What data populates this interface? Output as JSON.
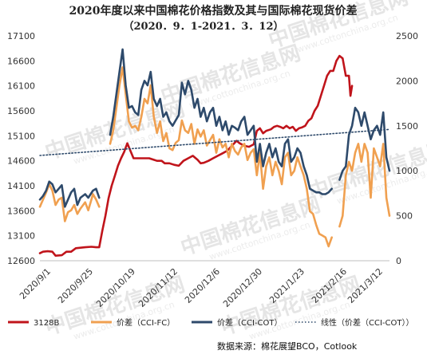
{
  "chart_data": {
    "type": "line",
    "title": "2020年度以来中国棉花价格指数及其与国际棉花现货价差",
    "subtitle": "（2020．9．1-2021．3．12）",
    "y_left": {
      "min": 12600,
      "max": 17100,
      "ticks": [
        12600,
        13100,
        13600,
        14100,
        14600,
        15100,
        15600,
        16100,
        16600,
        17100
      ]
    },
    "y_right": {
      "min": 0,
      "max": 2500,
      "ticks": [
        0,
        500,
        1000,
        1500,
        2000,
        2500
      ]
    },
    "x_tick_labels": [
      "2020/9/1",
      "2020/9/25",
      "2020/10/19",
      "2020/11/12",
      "2020/12/6",
      "2020/12/30",
      "2021/1/23",
      "2021/2/16",
      "2021/3/12"
    ],
    "x_domain": [
      0,
      192
    ],
    "series": [
      {
        "name": "3128B",
        "axis": "left",
        "color": "#c0141b",
        "style": "solid",
        "points": [
          [
            0,
            12750
          ],
          [
            2,
            12780
          ],
          [
            5,
            12790
          ],
          [
            8,
            12780
          ],
          [
            10,
            12700
          ],
          [
            14,
            12710
          ],
          [
            17,
            12780
          ],
          [
            20,
            12780
          ],
          [
            23,
            12850
          ],
          [
            26,
            12860
          ],
          [
            29,
            12870
          ],
          [
            33,
            12880
          ],
          [
            36,
            12870
          ],
          [
            38,
            12870
          ],
          [
            40,
            13200
          ],
          [
            42,
            13500
          ],
          [
            44,
            13850
          ],
          [
            46,
            14100
          ],
          [
            48,
            14300
          ],
          [
            50,
            14500
          ],
          [
            52,
            14650
          ],
          [
            54,
            14780
          ],
          [
            56,
            14950
          ],
          [
            58,
            14800
          ],
          [
            60,
            14650
          ],
          [
            63,
            14650
          ],
          [
            66,
            14650
          ],
          [
            70,
            14650
          ],
          [
            73,
            14620
          ],
          [
            75,
            14600
          ],
          [
            78,
            14600
          ],
          [
            80,
            14550
          ],
          [
            83,
            14550
          ],
          [
            86,
            14520
          ],
          [
            89,
            14500
          ],
          [
            92,
            14600
          ],
          [
            95,
            14650
          ],
          [
            98,
            14700
          ],
          [
            101,
            14620
          ],
          [
            103,
            14550
          ],
          [
            105,
            14560
          ],
          [
            108,
            14600
          ],
          [
            111,
            14650
          ],
          [
            114,
            14700
          ],
          [
            117,
            14750
          ],
          [
            120,
            14800
          ],
          [
            123,
            14900
          ],
          [
            126,
            15000
          ],
          [
            128,
            14950
          ],
          [
            131,
            14900
          ],
          [
            134,
            14880
          ],
          [
            137,
            14930
          ],
          [
            139,
            15200
          ],
          [
            141,
            15250
          ],
          [
            143,
            15150
          ],
          [
            145,
            15200
          ],
          [
            148,
            15230
          ],
          [
            150,
            15280
          ],
          [
            152,
            15300
          ],
          [
            154,
            15280
          ],
          [
            156,
            15250
          ],
          [
            158,
            15300
          ],
          [
            160,
            15250
          ],
          [
            162,
            15280
          ],
          [
            164,
            15200
          ],
          [
            166,
            15250
          ],
          [
            168,
            15270
          ],
          [
            170,
            15300
          ],
          [
            172,
            15400
          ],
          [
            174,
            15450
          ],
          [
            176,
            15600
          ],
          [
            178,
            15700
          ],
          [
            180,
            15900
          ],
          [
            182,
            16100
          ],
          [
            184,
            16300
          ],
          [
            186,
            16400
          ],
          [
            188,
            16400
          ],
          [
            190,
            16600
          ],
          [
            192,
            16700
          ],
          [
            194,
            16650
          ],
          [
            196,
            16300
          ],
          [
            198,
            16300
          ],
          [
            199,
            15900
          ],
          [
            200,
            16100
          ]
        ]
      },
      {
        "name": "价差（CCI-FC）",
        "axis": "right",
        "color": "#f0a050",
        "style": "solid",
        "points": [
          [
            0,
            600
          ],
          [
            2,
            680
          ],
          [
            4,
            760
          ],
          [
            6,
            850
          ],
          [
            8,
            780
          ],
          [
            10,
            620
          ],
          [
            12,
            680
          ],
          [
            14,
            700
          ],
          [
            16,
            440
          ],
          [
            18,
            540
          ],
          [
            20,
            560
          ],
          [
            22,
            620
          ],
          [
            24,
            520
          ],
          [
            26,
            580
          ],
          [
            29,
            650
          ],
          [
            31,
            560
          ],
          [
            34,
            740
          ],
          [
            36,
            680
          ],
          [
            38,
            600
          ],
          null,
          [
            45,
            1300
          ],
          [
            47,
            1450
          ],
          [
            49,
            1700
          ],
          [
            51,
            1950
          ],
          [
            53,
            2150
          ],
          [
            55,
            1850
          ],
          [
            57,
            1550
          ],
          [
            59,
            1480
          ],
          [
            61,
            1500
          ],
          [
            63,
            1450
          ],
          [
            65,
            1600
          ],
          [
            67,
            1800
          ],
          [
            69,
            1750
          ],
          [
            71,
            1950
          ],
          [
            73,
            1600
          ],
          [
            75,
            1420
          ],
          [
            77,
            1550
          ],
          [
            79,
            1330
          ],
          [
            81,
            1420
          ],
          [
            83,
            1250
          ],
          [
            85,
            1230
          ],
          [
            87,
            1310
          ],
          [
            89,
            1340
          ],
          [
            91,
            1560
          ],
          [
            93,
            1450
          ],
          [
            95,
            1420
          ],
          [
            97,
            1520
          ],
          [
            99,
            1300
          ],
          [
            101,
            1460
          ],
          [
            103,
            1380
          ],
          [
            105,
            1450
          ],
          [
            107,
            1280
          ],
          [
            109,
            1340
          ],
          [
            111,
            1400
          ],
          [
            113,
            1200
          ],
          [
            115,
            1350
          ],
          [
            117,
            1260
          ],
          [
            119,
            1300
          ],
          [
            121,
            1150
          ],
          [
            123,
            1300
          ],
          [
            125,
            1220
          ],
          [
            127,
            1180
          ],
          [
            129,
            1260
          ],
          [
            131,
            1300
          ],
          [
            133,
            1120
          ],
          [
            135,
            1200
          ],
          [
            137,
            1240
          ],
          [
            139,
            950
          ],
          [
            141,
            1200
          ],
          [
            143,
            800
          ],
          [
            145,
            1050
          ],
          [
            147,
            1150
          ],
          [
            149,
            950
          ],
          [
            151,
            1100
          ],
          [
            153,
            1000
          ],
          [
            155,
            850
          ],
          [
            157,
            1150
          ],
          [
            159,
            1200
          ],
          [
            161,
            950
          ],
          [
            163,
            1000
          ],
          [
            165,
            1150
          ],
          [
            167,
            1050
          ],
          [
            169,
            950
          ],
          [
            171,
            800
          ],
          [
            173,
            550
          ],
          [
            175,
            520
          ],
          [
            177,
            400
          ],
          [
            179,
            300
          ],
          [
            181,
            280
          ],
          [
            183,
            260
          ],
          [
            185,
            160
          ],
          [
            187,
            260
          ],
          null,
          [
            192,
            380
          ],
          [
            194,
            500
          ],
          [
            196,
            950
          ],
          [
            198,
            1100
          ],
          [
            200,
            1000
          ],
          [
            202,
            1200
          ],
          [
            204,
            1300
          ],
          [
            206,
            1100
          ],
          [
            208,
            1300
          ],
          [
            210,
            1200
          ],
          [
            212,
            700
          ],
          [
            214,
            1250
          ],
          [
            216,
            1150
          ],
          [
            218,
            1050
          ],
          [
            220,
            1300
          ],
          [
            222,
            700
          ],
          [
            224,
            500
          ]
        ]
      },
      {
        "name": "价差（CCI-COT）",
        "axis": "right",
        "color": "#2e4a6b",
        "style": "solid",
        "points": [
          [
            0,
            680
          ],
          [
            2,
            720
          ],
          [
            4,
            780
          ],
          [
            6,
            880
          ],
          [
            8,
            850
          ],
          [
            10,
            760
          ],
          [
            12,
            800
          ],
          [
            14,
            840
          ],
          [
            16,
            600
          ],
          [
            18,
            680
          ],
          [
            20,
            760
          ],
          [
            22,
            800
          ],
          [
            24,
            620
          ],
          [
            26,
            700
          ],
          [
            29,
            740
          ],
          [
            31,
            700
          ],
          [
            34,
            780
          ],
          [
            36,
            800
          ],
          [
            38,
            700
          ],
          null,
          [
            45,
            1400
          ],
          [
            47,
            1600
          ],
          [
            49,
            1850
          ],
          [
            51,
            2100
          ],
          [
            53,
            2350
          ],
          [
            55,
            1950
          ],
          [
            57,
            1700
          ],
          [
            59,
            1720
          ],
          [
            61,
            1650
          ],
          [
            63,
            1620
          ],
          [
            65,
            1900
          ],
          [
            67,
            2000
          ],
          [
            69,
            1950
          ],
          [
            71,
            2100
          ],
          [
            73,
            1800
          ],
          [
            75,
            1720
          ],
          [
            77,
            1800
          ],
          [
            79,
            1600
          ],
          [
            81,
            1650
          ],
          [
            83,
            1550
          ],
          [
            85,
            1500
          ],
          [
            87,
            1560
          ],
          [
            89,
            1620
          ],
          [
            91,
            1980
          ],
          [
            93,
            1850
          ],
          [
            95,
            2000
          ],
          [
            97,
            1900
          ],
          [
            99,
            1700
          ],
          [
            101,
            1800
          ],
          [
            103,
            1600
          ],
          [
            105,
            1700
          ],
          [
            107,
            1550
          ],
          [
            109,
            1650
          ],
          [
            111,
            1700
          ],
          [
            113,
            1500
          ],
          [
            115,
            1600
          ],
          [
            117,
            1450
          ],
          [
            119,
            1550
          ],
          [
            121,
            1400
          ],
          [
            123,
            1500
          ],
          [
            125,
            1480
          ],
          [
            127,
            1450
          ],
          [
            129,
            1550
          ],
          [
            131,
            1600
          ],
          [
            133,
            1400
          ],
          [
            135,
            1450
          ],
          [
            137,
            1500
          ],
          [
            139,
            1100
          ],
          [
            141,
            1300
          ],
          [
            143,
            1050
          ],
          [
            145,
            1200
          ],
          [
            147,
            1300
          ],
          [
            149,
            1150
          ],
          [
            151,
            1250
          ],
          [
            153,
            1100
          ],
          [
            155,
            1050
          ],
          [
            157,
            1300
          ],
          [
            159,
            1350
          ],
          [
            161,
            1100
          ],
          [
            163,
            1150
          ],
          [
            165,
            1250
          ],
          [
            167,
            1200
          ],
          [
            169,
            1050
          ],
          [
            171,
            950
          ],
          [
            173,
            800
          ],
          [
            175,
            780
          ],
          [
            177,
            760
          ],
          [
            179,
            760
          ],
          [
            181,
            740
          ],
          [
            183,
            740
          ],
          [
            185,
            760
          ],
          [
            187,
            800
          ],
          null,
          [
            192,
            900
          ],
          [
            194,
            1000
          ],
          [
            196,
            1050
          ],
          [
            198,
            1400
          ],
          [
            200,
            1500
          ],
          [
            202,
            1700
          ],
          [
            204,
            1650
          ],
          [
            206,
            1500
          ],
          [
            208,
            1650
          ],
          [
            210,
            1500
          ],
          [
            212,
            1350
          ],
          [
            214,
            1450
          ],
          [
            216,
            1500
          ],
          [
            218,
            1400
          ],
          [
            220,
            1650
          ],
          [
            222,
            1150
          ],
          [
            224,
            1000
          ]
        ]
      },
      {
        "name": "线性（价差（CCI-COT））",
        "axis": "right",
        "color": "#2e4a6b",
        "style": "dotted",
        "points": [
          [
            0,
            1170
          ],
          [
            224,
            1460
          ]
        ]
      }
    ]
  },
  "legend": [
    {
      "label": "3128B",
      "color": "#c0141b",
      "style": "solid"
    },
    {
      "label": "价差（CCI-FC）",
      "color": "#f0a050",
      "style": "solid"
    },
    {
      "label": "价差（CCI-COT）",
      "color": "#2e4a6b",
      "style": "solid"
    },
    {
      "label": "线性（价差（CCI-COT））",
      "color": "#2e4a6b",
      "style": "dotted"
    }
  ],
  "source": "数据来源：棉花展望BCO，Cotlook",
  "watermark": {
    "brand": "中国棉花信息网",
    "url": "www.cottonchina.org.cn"
  }
}
